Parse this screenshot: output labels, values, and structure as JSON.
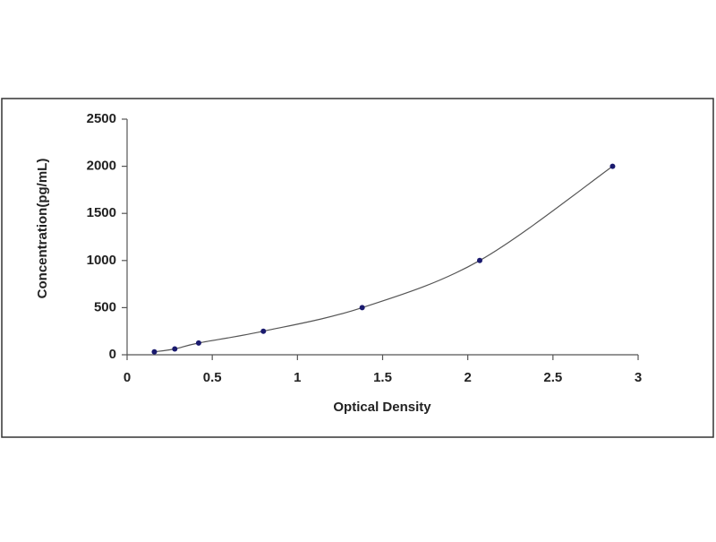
{
  "chart_data": {
    "type": "scatter",
    "x_label": "Optical Density",
    "y_label": "Concentration(pg/mL)",
    "series": [
      {
        "x": [
          0.16,
          0.28,
          0.42,
          0.8,
          1.38,
          2.07,
          2.85
        ],
        "values": [
          31,
          62,
          125,
          250,
          500,
          1000,
          2000
        ],
        "color": "#1a1a6e"
      }
    ],
    "fit_line": true,
    "line_color": "#555555",
    "xlim": [
      0,
      3
    ],
    "xticks": [
      0,
      0.5,
      1,
      1.5,
      2,
      2.5,
      3
    ],
    "ylim": [
      0,
      2500
    ],
    "yticks": [
      0,
      500,
      1000,
      1500,
      2000,
      2500
    ]
  }
}
